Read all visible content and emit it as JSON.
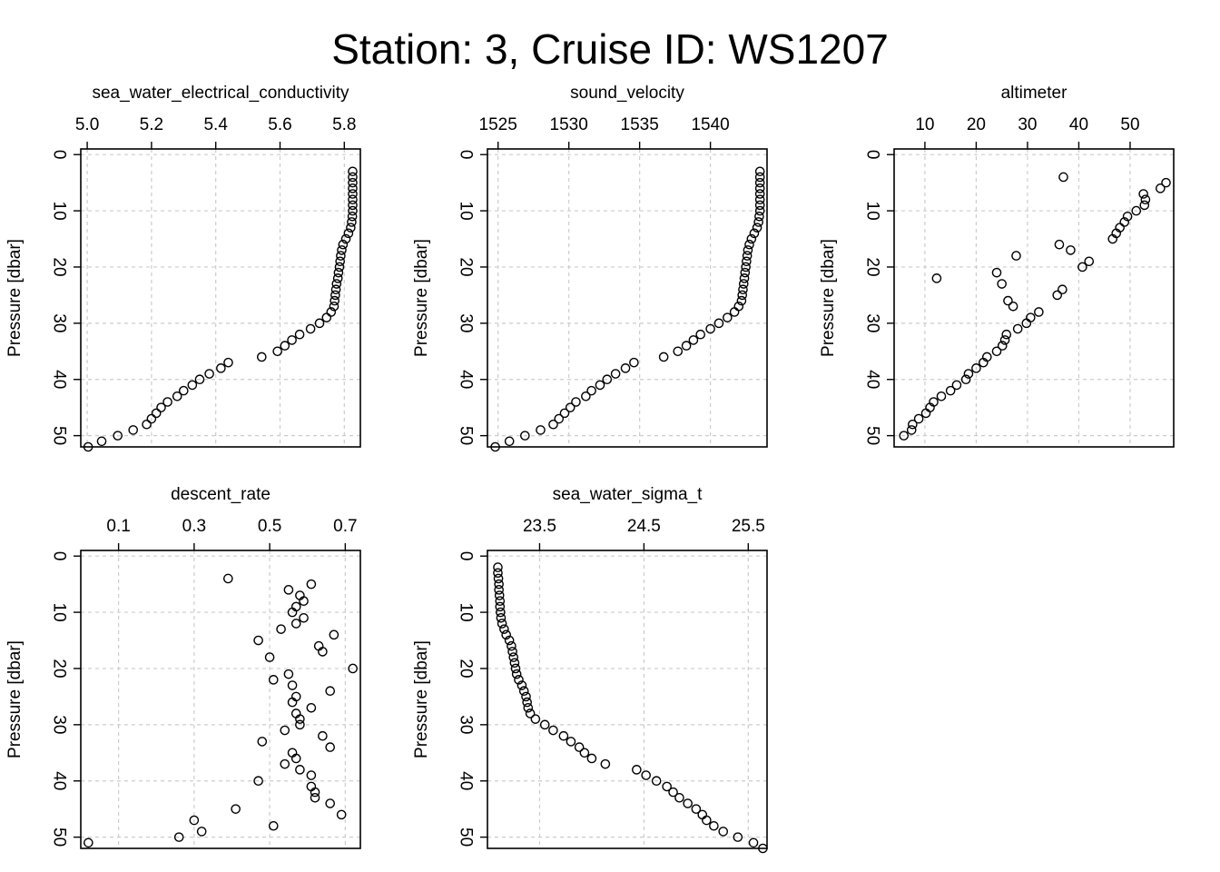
{
  "title": "Station: 3, Cruise ID: WS1207",
  "chart_data": [
    {
      "type": "scatter",
      "title": "sea_water_electrical_conductivity",
      "xlabel": "",
      "ylabel": "Pressure [dbar]",
      "x_ticks": [
        "5.0",
        "5.2",
        "5.4",
        "5.6",
        "5.8"
      ],
      "y_ticks": [
        "0",
        "10",
        "20",
        "30",
        "40",
        "50"
      ],
      "x_reversed": false,
      "y_reversed": true,
      "xlim": [
        4.98,
        5.85
      ],
      "ylim": [
        52.0,
        -1.0
      ],
      "grid": true,
      "x": [
        5.826,
        5.826,
        5.826,
        5.826,
        5.826,
        5.826,
        5.826,
        5.826,
        5.825,
        5.823,
        5.82,
        5.813,
        5.805,
        5.796,
        5.792,
        5.789,
        5.787,
        5.785,
        5.782,
        5.78,
        5.776,
        5.774,
        5.772,
        5.77,
        5.768,
        5.759,
        5.745,
        5.723,
        5.695,
        5.661,
        5.637,
        5.615,
        5.592,
        5.543,
        5.439,
        5.416,
        5.38,
        5.35,
        5.327,
        5.3,
        5.28,
        5.25,
        5.23,
        5.215,
        5.2,
        5.185,
        5.143,
        5.095,
        5.045,
        5.003
      ],
      "y": [
        3,
        4,
        5,
        6,
        7,
        8,
        9,
        10,
        11,
        12,
        13,
        14,
        15,
        16,
        17,
        18,
        19,
        20,
        21,
        22,
        23,
        24,
        25,
        26,
        27,
        28,
        29,
        30,
        31,
        32,
        33,
        34,
        35,
        36,
        37,
        38,
        39,
        40,
        41,
        42,
        43,
        44,
        45,
        46,
        47,
        48,
        49,
        50,
        51,
        52
      ]
    },
    {
      "type": "scatter",
      "title": "sound_velocity",
      "xlabel": "",
      "ylabel": "Pressure [dbar]",
      "x_ticks": [
        "1525",
        "1530",
        "1535",
        "1540"
      ],
      "y_ticks": [
        "0",
        "10",
        "20",
        "30",
        "40",
        "50"
      ],
      "x_reversed": false,
      "y_reversed": true,
      "xlim": [
        1524.25,
        1544.0
      ],
      "ylim": [
        52.0,
        -1.0
      ],
      "grid": true,
      "x": [
        1543.5,
        1543.5,
        1543.5,
        1543.5,
        1543.5,
        1543.5,
        1543.5,
        1543.5,
        1543.45,
        1543.4,
        1543.3,
        1543.1,
        1542.9,
        1542.75,
        1542.65,
        1542.6,
        1542.55,
        1542.5,
        1542.45,
        1542.4,
        1542.35,
        1542.3,
        1542.25,
        1542.2,
        1542.0,
        1541.7,
        1541.2,
        1540.6,
        1540.0,
        1539.3,
        1538.8,
        1538.3,
        1537.7,
        1536.7,
        1534.6,
        1534.0,
        1533.3,
        1532.7,
        1532.2,
        1531.6,
        1531.2,
        1530.5,
        1530.1,
        1529.7,
        1529.3,
        1528.9,
        1528.0,
        1526.9,
        1525.8,
        1524.8
      ],
      "y": [
        3,
        4,
        5,
        6,
        7,
        8,
        9,
        10,
        11,
        12,
        13,
        14,
        15,
        16,
        17,
        18,
        19,
        20,
        21,
        22,
        23,
        24,
        25,
        26,
        27,
        28,
        29,
        30,
        31,
        32,
        33,
        34,
        35,
        36,
        37,
        38,
        39,
        40,
        41,
        42,
        43,
        44,
        45,
        46,
        47,
        48,
        49,
        50,
        51,
        52
      ]
    },
    {
      "type": "scatter",
      "title": "altimeter",
      "xlabel": "",
      "ylabel": "Pressure [dbar]",
      "x_ticks": [
        "10",
        "20",
        "30",
        "40",
        "50"
      ],
      "y_ticks": [
        "0",
        "10",
        "20",
        "30",
        "40",
        "50"
      ],
      "x_reversed": false,
      "y_reversed": true,
      "xlim": [
        4.0,
        58.5
      ],
      "ylim": [
        52.0,
        -1.0
      ],
      "grid": true,
      "x": [
        37.0,
        57.0,
        55.9,
        52.6,
        53.0,
        52.8,
        51.2,
        49.5,
        48.9,
        48.0,
        47.3,
        46.6,
        36.2,
        38.4,
        27.8,
        42.0,
        40.7,
        24.0,
        12.3,
        25.0,
        36.8,
        35.8,
        26.2,
        27.2,
        32.2,
        30.6,
        29.8,
        28.1,
        25.9,
        25.6,
        25.1,
        24.0,
        22.1,
        21.4,
        20.0,
        18.5,
        18.0,
        16.2,
        15.0,
        13.2,
        11.7,
        11.0,
        10.2,
        8.8,
        7.6,
        7.4,
        5.9
      ],
      "y": [
        4,
        5,
        6,
        7,
        8,
        9,
        10,
        11,
        12,
        13,
        14,
        15,
        16,
        17,
        18,
        19,
        20,
        21,
        22,
        23,
        24,
        25,
        26,
        27,
        28,
        29,
        30,
        31,
        32,
        33,
        34,
        35,
        36,
        37,
        38,
        39,
        40,
        41,
        42,
        43,
        44,
        45,
        46,
        47,
        48,
        49,
        50
      ]
    },
    {
      "type": "scatter",
      "title": "descent_rate",
      "xlabel": "",
      "ylabel": "Pressure [dbar]",
      "x_ticks": [
        "0.1",
        "0.3",
        "0.5",
        "0.7"
      ],
      "y_ticks": [
        "0",
        "10",
        "20",
        "30",
        "40",
        "50"
      ],
      "x_reversed": false,
      "y_reversed": true,
      "xlim": [
        0.0,
        0.74
      ],
      "ylim": [
        52.0,
        -1.0
      ],
      "grid": true,
      "x": [
        0.39,
        0.61,
        0.55,
        0.58,
        0.59,
        0.57,
        0.56,
        0.59,
        0.57,
        0.53,
        0.67,
        0.47,
        0.63,
        0.64,
        0.5,
        0.72,
        0.55,
        0.51,
        0.56,
        0.66,
        0.57,
        0.56,
        0.61,
        0.57,
        0.58,
        0.58,
        0.54,
        0.64,
        0.48,
        0.66,
        0.56,
        0.57,
        0.54,
        0.58,
        0.61,
        0.47,
        0.61,
        0.62,
        0.62,
        0.66,
        0.69,
        0.41,
        0.3,
        0.51,
        0.32,
        0.26,
        0.02
      ],
      "y": [
        4,
        5,
        6,
        7,
        8,
        9,
        10,
        11,
        12,
        13,
        14,
        15,
        16,
        17,
        18,
        20,
        21,
        22,
        23,
        24,
        25,
        26,
        27,
        28,
        29,
        30,
        31,
        32,
        33,
        34,
        35,
        36,
        37,
        38,
        39,
        40,
        41,
        42,
        43,
        44,
        46,
        45,
        47,
        48,
        49,
        50,
        51
      ]
    },
    {
      "type": "scatter",
      "title": "sea_water_sigma_t",
      "xlabel": "",
      "ylabel": "Pressure [dbar]",
      "x_ticks": [
        "23.5",
        "24.5",
        "25.5"
      ],
      "y_ticks": [
        "0",
        "10",
        "20",
        "30",
        "40",
        "50"
      ],
      "x_reversed": false,
      "y_reversed": true,
      "xlim": [
        23.0,
        25.68
      ],
      "ylim": [
        52.0,
        -1.0
      ],
      "grid": true,
      "x": [
        23.1,
        23.1,
        23.105,
        23.11,
        23.11,
        23.115,
        23.12,
        23.12,
        23.125,
        23.13,
        23.14,
        23.16,
        23.18,
        23.21,
        23.23,
        23.24,
        23.25,
        23.26,
        23.27,
        23.28,
        23.3,
        23.33,
        23.35,
        23.37,
        23.38,
        23.39,
        23.41,
        23.46,
        23.55,
        23.63,
        23.73,
        23.8,
        23.88,
        23.93,
        24.0,
        24.13,
        24.43,
        24.52,
        24.62,
        24.72,
        24.78,
        24.84,
        24.92,
        25.0,
        25.06,
        25.1,
        25.17,
        25.26,
        25.4,
        25.55,
        25.64
      ],
      "y": [
        2,
        3,
        4,
        5,
        6,
        7,
        8,
        9,
        10,
        11,
        12,
        13,
        14,
        15,
        16,
        17,
        18,
        19,
        20,
        21,
        22,
        23,
        24,
        25,
        26,
        27,
        28,
        29,
        30,
        31,
        32,
        33,
        34,
        35,
        36,
        37,
        38,
        39,
        40,
        41,
        42,
        43,
        44,
        45,
        46,
        47,
        48,
        49,
        50,
        51,
        52
      ]
    }
  ]
}
